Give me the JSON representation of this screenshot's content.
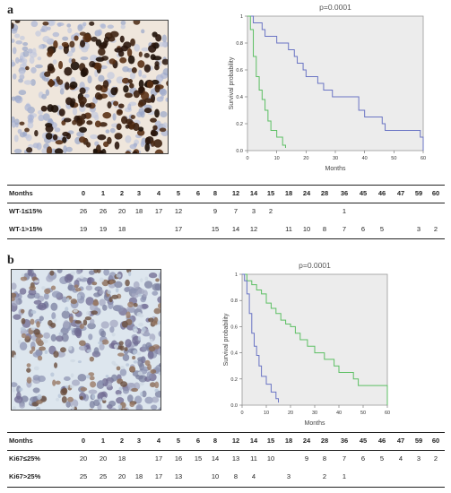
{
  "panels": [
    {
      "letter": "a",
      "p_value": "p=0.0001",
      "table": {
        "header_label": "Months",
        "header_months": [
          "0",
          "1",
          "2",
          "3",
          "4",
          "5",
          "6",
          "8",
          "12",
          "14",
          "15",
          "18",
          "24",
          "28",
          "36",
          "45",
          "46",
          "47",
          "59",
          "60"
        ],
        "rows": [
          {
            "label": "WT-1≤15%",
            "values": [
              "26",
              "26",
              "20",
              "18",
              "17",
              "12",
              "",
              "9",
              "7",
              "3",
              "2",
              "",
              "",
              "",
              "1",
              "",
              "",
              "",
              "",
              ""
            ]
          },
          {
            "label": "WT-1>15%",
            "values": [
              "19",
              "19",
              "18",
              "",
              "",
              "17",
              "",
              "15",
              "14",
              "12",
              "",
              "11",
              "10",
              "8",
              "7",
              "6",
              "5",
              "",
              "3",
              "2"
            ]
          }
        ]
      }
    },
    {
      "letter": "b",
      "p_value": "p=0.0001",
      "table": {
        "header_label": "Months",
        "header_months": [
          "0",
          "1",
          "2",
          "3",
          "4",
          "5",
          "6",
          "8",
          "12",
          "14",
          "15",
          "18",
          "24",
          "28",
          "36",
          "45",
          "46",
          "47",
          "59",
          "60"
        ],
        "rows": [
          {
            "label": "Ki67≤25%",
            "values": [
              "20",
              "20",
              "18",
              "",
              "17",
              "16",
              "15",
              "14",
              "13",
              "11",
              "10",
              "",
              "9",
              "8",
              "7",
              "6",
              "5",
              "4",
              "3",
              "2"
            ]
          },
          {
            "label": "Ki67>25%",
            "values": [
              "25",
              "25",
              "20",
              "18",
              "17",
              "13",
              "",
              "10",
              "8",
              "4",
              "",
              "3",
              "",
              "2",
              "1",
              "",
              "",
              "",
              "",
              ""
            ]
          }
        ]
      }
    }
  ],
  "chart_data": [
    {
      "type": "line",
      "title": "p=0.0001",
      "xlabel": "Months",
      "ylabel": "Survival probability",
      "xlim": [
        0,
        60
      ],
      "ylim": [
        0,
        1
      ],
      "x_ticks": [
        0,
        10,
        20,
        30,
        40,
        50,
        60
      ],
      "y_ticks": [
        "0.0",
        "0.2",
        "0.4",
        "0.6",
        "0.8",
        "1"
      ],
      "grid": false,
      "step": true,
      "series": [
        {
          "color": "#6a74c4",
          "x": [
            0,
            1,
            2,
            5,
            6,
            9,
            10,
            12,
            14,
            16,
            17,
            19,
            20,
            22,
            24,
            26,
            29,
            30,
            34,
            38,
            40,
            46,
            47,
            48,
            59,
            60
          ],
          "y": [
            1.0,
            1.0,
            0.95,
            0.9,
            0.85,
            0.85,
            0.8,
            0.8,
            0.75,
            0.7,
            0.65,
            0.6,
            0.55,
            0.55,
            0.5,
            0.45,
            0.4,
            0.4,
            0.4,
            0.3,
            0.25,
            0.2,
            0.15,
            0.15,
            0.1,
            0.0
          ]
        },
        {
          "color": "#5cbf63",
          "x": [
            0,
            1,
            2,
            3,
            4,
            5,
            6,
            7,
            8,
            10,
            12,
            13
          ],
          "y": [
            1.0,
            0.9,
            0.7,
            0.55,
            0.45,
            0.38,
            0.3,
            0.22,
            0.15,
            0.1,
            0.04,
            0.02
          ]
        }
      ]
    },
    {
      "type": "line",
      "title": "p=0.0001",
      "xlabel": "Months",
      "ylabel": "Survival probability",
      "xlim": [
        0,
        60
      ],
      "ylim": [
        0,
        1
      ],
      "x_ticks": [
        0,
        10,
        20,
        30,
        40,
        50,
        60
      ],
      "y_ticks": [
        "0.0",
        "0.2",
        "0.4",
        "0.6",
        "0.8",
        "1"
      ],
      "grid": false,
      "step": true,
      "series": [
        {
          "color": "#5cbf63",
          "x": [
            0,
            2,
            4,
            6,
            8,
            10,
            12,
            14,
            16,
            18,
            20,
            22,
            24,
            27,
            30,
            34,
            38,
            40,
            46,
            48,
            60
          ],
          "y": [
            1.0,
            0.95,
            0.92,
            0.88,
            0.85,
            0.78,
            0.74,
            0.7,
            0.65,
            0.62,
            0.6,
            0.55,
            0.5,
            0.45,
            0.4,
            0.35,
            0.3,
            0.25,
            0.2,
            0.15,
            0.0
          ]
        },
        {
          "color": "#6a74c4",
          "x": [
            0,
            1,
            2,
            3,
            4,
            5,
            6,
            7,
            8,
            10,
            12,
            14,
            15
          ],
          "y": [
            1.0,
            0.95,
            0.85,
            0.7,
            0.55,
            0.45,
            0.38,
            0.3,
            0.22,
            0.16,
            0.1,
            0.05,
            0.02
          ]
        }
      ]
    }
  ]
}
